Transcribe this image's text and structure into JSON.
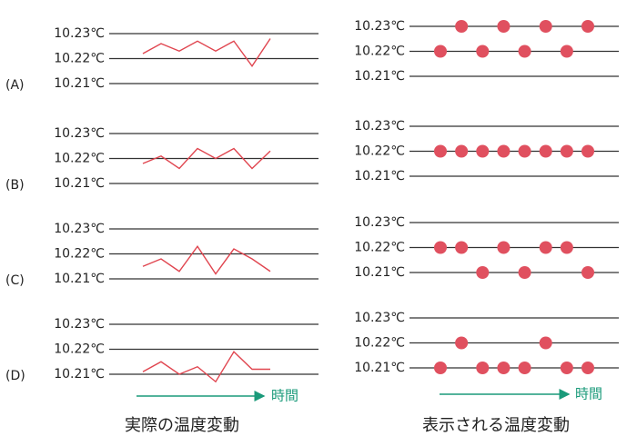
{
  "titles": {
    "actual": "実際の温度変動",
    "displayed": "表示される温度変動"
  },
  "time_label": "時間",
  "rows": [
    {
      "label": "(A)",
      "actual": {
        "type": "line",
        "color": "#e0454f",
        "ylim": [
          10.21,
          10.23
        ],
        "yticks": [
          {
            "value": 10.23,
            "label": "10.23℃"
          },
          {
            "value": 10.22,
            "label": "10.22℃"
          },
          {
            "value": 10.21,
            "label": "10.21℃"
          }
        ],
        "values": [
          10.222,
          10.226,
          10.223,
          10.227,
          10.223,
          10.227,
          10.217,
          10.228
        ]
      },
      "displayed": {
        "type": "scatter",
        "color": "#e0505f",
        "ylim": [
          10.21,
          10.23
        ],
        "yticks": [
          {
            "value": 10.23,
            "label": "10.23℃"
          },
          {
            "value": 10.22,
            "label": "10.22℃"
          },
          {
            "value": 10.21,
            "label": "10.21℃"
          }
        ],
        "values": [
          10.22,
          10.23,
          10.22,
          10.23,
          10.22,
          10.23,
          10.22,
          10.23
        ]
      }
    },
    {
      "label": "(B)",
      "actual": {
        "type": "line",
        "color": "#e0454f",
        "ylim": [
          10.21,
          10.23
        ],
        "yticks": [
          {
            "value": 10.23,
            "label": "10.23℃"
          },
          {
            "value": 10.22,
            "label": "10.22℃"
          },
          {
            "value": 10.21,
            "label": "10.21℃"
          }
        ],
        "values": [
          10.218,
          10.221,
          10.216,
          10.224,
          10.22,
          10.224,
          10.216,
          10.223
        ]
      },
      "displayed": {
        "type": "scatter",
        "color": "#e0505f",
        "ylim": [
          10.21,
          10.23
        ],
        "yticks": [
          {
            "value": 10.23,
            "label": "10.23℃"
          },
          {
            "value": 10.22,
            "label": "10.22℃"
          },
          {
            "value": 10.21,
            "label": "10.21℃"
          }
        ],
        "values": [
          10.22,
          10.22,
          10.22,
          10.22,
          10.22,
          10.22,
          10.22,
          10.22
        ]
      }
    },
    {
      "label": "(C)",
      "actual": {
        "type": "line",
        "color": "#e0454f",
        "ylim": [
          10.21,
          10.23
        ],
        "yticks": [
          {
            "value": 10.23,
            "label": "10.23℃"
          },
          {
            "value": 10.22,
            "label": "10.22℃"
          },
          {
            "value": 10.21,
            "label": "10.21℃"
          }
        ],
        "values": [
          10.215,
          10.218,
          10.213,
          10.223,
          10.212,
          10.222,
          10.218,
          10.213
        ]
      },
      "displayed": {
        "type": "scatter",
        "color": "#e0505f",
        "ylim": [
          10.21,
          10.23
        ],
        "yticks": [
          {
            "value": 10.23,
            "label": "10.23℃"
          },
          {
            "value": 10.22,
            "label": "10.22℃"
          },
          {
            "value": 10.21,
            "label": "10.21℃"
          }
        ],
        "values": [
          10.22,
          10.22,
          10.21,
          10.22,
          10.21,
          10.22,
          10.22,
          10.21
        ]
      }
    },
    {
      "label": "(D)",
      "actual": {
        "type": "line",
        "color": "#e0454f",
        "ylim": [
          10.21,
          10.23
        ],
        "yticks": [
          {
            "value": 10.23,
            "label": "10.23℃"
          },
          {
            "value": 10.22,
            "label": "10.22℃"
          },
          {
            "value": 10.21,
            "label": "10.21℃"
          }
        ],
        "values": [
          10.211,
          10.215,
          10.21,
          10.213,
          10.207,
          10.219,
          10.212,
          10.212
        ]
      },
      "displayed": {
        "type": "scatter",
        "color": "#e0505f",
        "ylim": [
          10.21,
          10.23
        ],
        "yticks": [
          {
            "value": 10.23,
            "label": "10.23℃"
          },
          {
            "value": 10.22,
            "label": "10.22℃"
          },
          {
            "value": 10.21,
            "label": "10.21℃"
          }
        ],
        "values": [
          10.21,
          10.22,
          10.21,
          10.21,
          10.21,
          10.22,
          10.21,
          10.21
        ]
      }
    }
  ]
}
